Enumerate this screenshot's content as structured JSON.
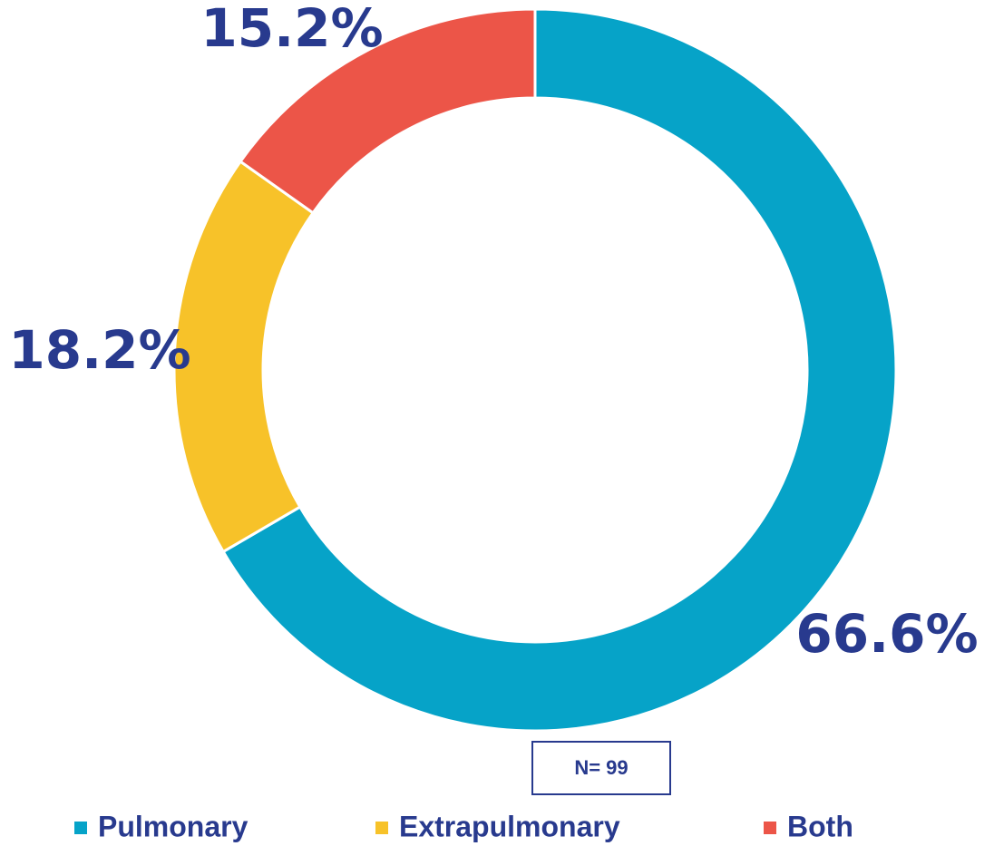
{
  "chart_data": {
    "type": "donut",
    "categories": [
      "Pulmonary",
      "Extrapulmonary",
      "Both"
    ],
    "series": [
      {
        "values": [
          66.6,
          18.2,
          15.2
        ],
        "value_labels": [
          "66.6%",
          "18.2%",
          "15.2%"
        ],
        "colors": [
          "#06a3c8",
          "#f7c229",
          "#ec5548"
        ]
      }
    ],
    "annotation": "N= 99",
    "legend": "bottom"
  }
}
